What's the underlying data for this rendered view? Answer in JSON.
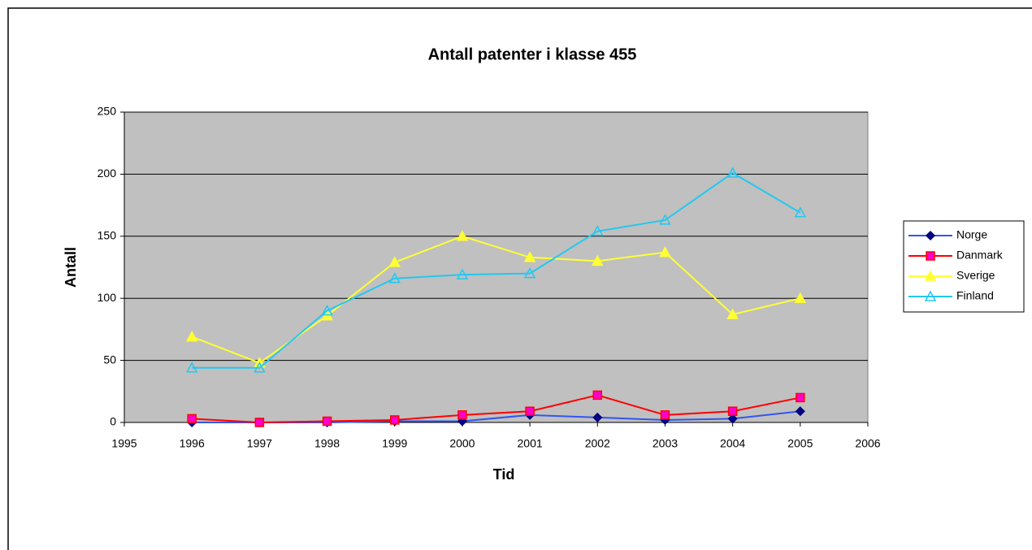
{
  "chart_data": {
    "type": "line",
    "title": "Antall patenter i klasse 455",
    "x_label": "Tid",
    "y_label": "Antall",
    "x": [
      1996,
      1997,
      1998,
      1999,
      2000,
      2001,
      2002,
      2003,
      2004,
      2005
    ],
    "xlim": [
      1995,
      2006
    ],
    "xticks": [
      1995,
      1996,
      1997,
      1998,
      1999,
      2000,
      2001,
      2002,
      2003,
      2004,
      2005,
      2006
    ],
    "ylim": [
      0,
      250
    ],
    "yticks": [
      0,
      50,
      100,
      150,
      200,
      250
    ],
    "grid": true,
    "legend": "right",
    "series": [
      {
        "name": "Norge",
        "color": "#3355ee",
        "marker": "diamond",
        "marker_fill": "#000080",
        "values": [
          0,
          0,
          0,
          1,
          1,
          6,
          4,
          2,
          3,
          9
        ]
      },
      {
        "name": "Danmark",
        "color": "#ff0000",
        "marker": "square",
        "marker_fill": "#ff00cc",
        "values": [
          3,
          0,
          1,
          2,
          6,
          9,
          22,
          6,
          9,
          20
        ]
      },
      {
        "name": "Sverige",
        "color": "#ffff33",
        "marker": "triangle",
        "marker_fill": "#ffff33",
        "values": [
          69,
          48,
          86,
          129,
          150,
          133,
          130,
          137,
          87,
          100
        ]
      },
      {
        "name": "Finland",
        "color": "#22c8f0",
        "marker": "triangle",
        "marker_fill": "none",
        "values": [
          44,
          44,
          90,
          116,
          119,
          120,
          154,
          163,
          201,
          169
        ]
      }
    ]
  }
}
